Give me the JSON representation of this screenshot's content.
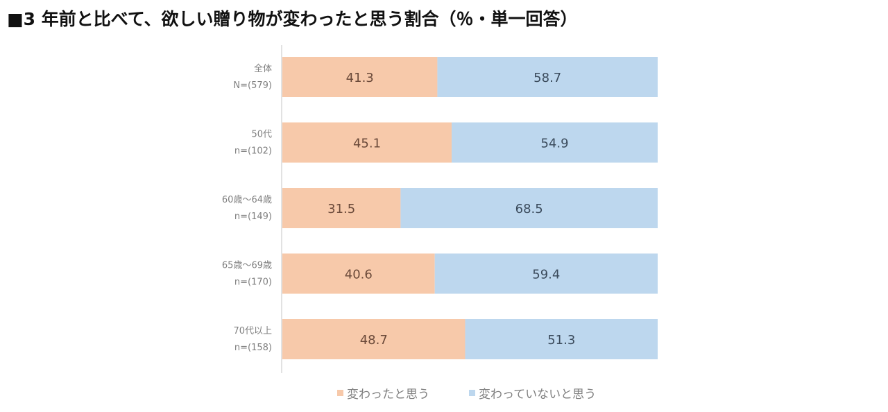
{
  "title": "■3 年前と比べて、欲しい贈り物が変わったと思う割合（％・単一回答）",
  "chart_data": {
    "type": "bar",
    "orientation": "horizontal",
    "stacked": true,
    "title": "■3 年前と比べて、欲しい贈り物が変わったと思う割合（％・単一回答）",
    "categories": [
      {
        "line1": "全体",
        "line2": "N=(579)"
      },
      {
        "line1": "50代",
        "line2": "n=(102)"
      },
      {
        "line1": "60歳～64歳",
        "line2": "n=(149)"
      },
      {
        "line1": "65歳～69歳",
        "line2": "n=(170)"
      },
      {
        "line1": "70代以上",
        "line2": "n=(158)"
      }
    ],
    "series": [
      {
        "name": "変わったと思う",
        "color": "#f7c9aa",
        "values": [
          41.3,
          45.1,
          31.5,
          40.6,
          48.7
        ]
      },
      {
        "name": "変わっていないと思う",
        "color": "#bdd7ee",
        "values": [
          58.7,
          54.9,
          68.5,
          59.4,
          51.3
        ]
      }
    ],
    "xlim": [
      0,
      100
    ],
    "xlabel": "",
    "ylabel": "",
    "grid": false,
    "legend_position": "bottom"
  }
}
